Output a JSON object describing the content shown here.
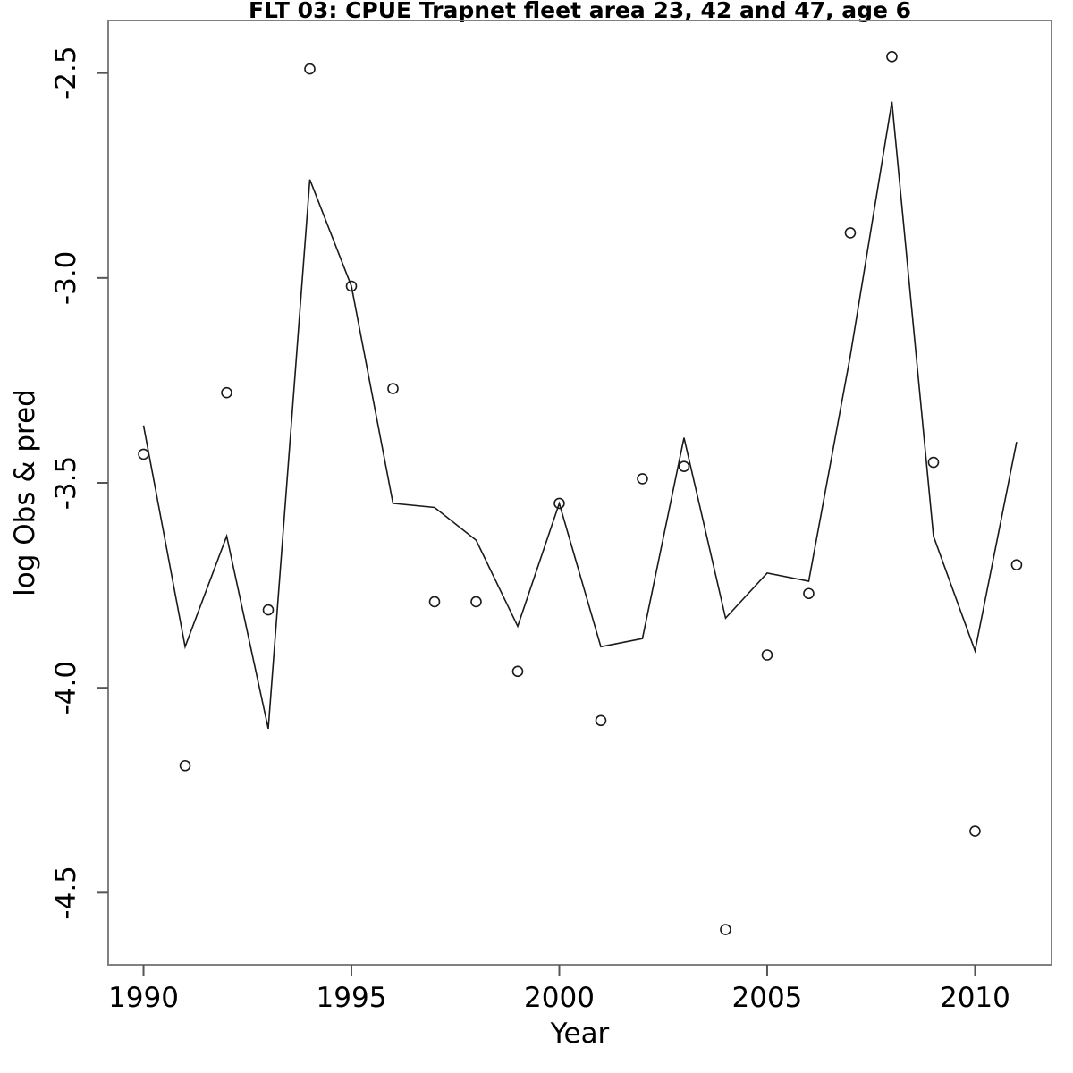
{
  "chart_data": {
    "type": "line",
    "title": "FLT 03: CPUE Trapnet fleet area 23, 42 and 47, age 6",
    "xlabel": "Year",
    "ylabel": "log Obs & pred",
    "x": [
      1990,
      1991,
      1992,
      1993,
      1994,
      1995,
      1996,
      1997,
      1998,
      1999,
      2000,
      2001,
      2002,
      2003,
      2004,
      2005,
      2006,
      2007,
      2008,
      2009,
      2010,
      2011
    ],
    "series": [
      {
        "name": "observed",
        "style": "points",
        "marker": "open-circle",
        "values": [
          -3.43,
          -4.19,
          -3.28,
          -3.81,
          -2.49,
          -3.02,
          -3.27,
          -3.79,
          -3.79,
          -3.96,
          -3.55,
          -4.08,
          -3.49,
          -3.46,
          -4.59,
          -3.92,
          -3.77,
          -2.89,
          -2.46,
          -3.45,
          -4.35,
          -3.7
        ]
      },
      {
        "name": "predicted",
        "style": "line",
        "values": [
          -3.36,
          -3.9,
          -3.63,
          -4.1,
          -2.76,
          -3.02,
          -3.55,
          -3.56,
          -3.64,
          -3.85,
          -3.55,
          -3.9,
          -3.88,
          -3.39,
          -3.83,
          -3.72,
          -3.74,
          -3.19,
          -2.57,
          -3.63,
          -3.91,
          -3.4
        ]
      }
    ],
    "x_ticks": [
      1990,
      1995,
      2000,
      2005,
      2010
    ],
    "x_tick_labels": [
      "1990",
      "1995",
      "2000",
      "2005",
      "2010"
    ],
    "y_ticks": [
      -2.5,
      -3.0,
      -3.5,
      -4.0,
      -4.5
    ],
    "y_tick_labels": [
      "-2.5",
      "-3.0",
      "-3.5",
      "-4.0",
      "-4.5"
    ],
    "xlim": [
      1989.15,
      2011.84
    ],
    "ylim": [
      -4.676,
      -2.372
    ],
    "grid": false,
    "legend": "none",
    "colors": {
      "line": "#1a1a1a",
      "points": "#1a1a1a",
      "box": "#808080",
      "tick": "#555555",
      "text": "#000000"
    }
  }
}
